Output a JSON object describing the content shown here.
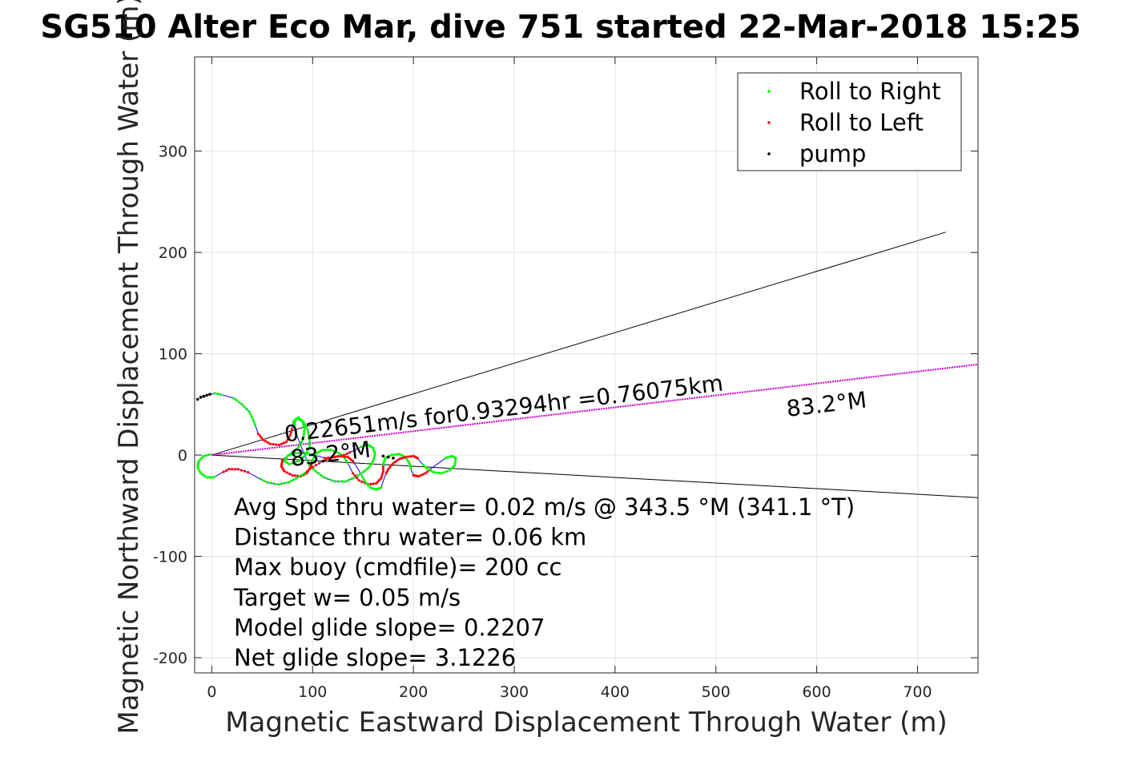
{
  "chart_data": {
    "type": "line",
    "title": "SG510 Alter Eco Mar, dive 751 started 22-Mar-2018 15:25",
    "xlabel": "Magnetic Eastward Displacement Through Water (m)",
    "ylabel": "Magnetic Northward Displacement Through Water (m)",
    "xlim": [
      -17,
      760
    ],
    "ylim": [
      -215,
      393
    ],
    "xticks": [
      0,
      100,
      200,
      300,
      400,
      500,
      600,
      700
    ],
    "yticks": [
      -200,
      -100,
      0,
      100,
      200,
      300
    ],
    "grid": true,
    "legend_position": "top-right",
    "legend": [
      {
        "label": "Roll to Right",
        "color": "#00ff00"
      },
      {
        "label": "Roll to Left",
        "color": "#ff0000"
      },
      {
        "label": "pump",
        "color": "#000000"
      }
    ],
    "colors": {
      "track": "#0000ff",
      "roll_right": "#00ff00",
      "roll_left": "#ff0000",
      "pump": "#000000",
      "mean_heading": "#cc00cc",
      "cone": "#000000"
    },
    "track": [
      [
        -12,
        57
      ],
      [
        -4,
        59
      ],
      [
        3,
        61
      ],
      [
        12,
        59
      ],
      [
        22,
        56
      ],
      [
        30,
        50
      ],
      [
        37,
        43
      ],
      [
        41,
        35
      ],
      [
        44,
        27
      ],
      [
        46,
        21
      ],
      [
        51,
        15
      ],
      [
        58,
        11
      ],
      [
        67,
        10
      ],
      [
        74,
        13
      ],
      [
        78,
        20
      ],
      [
        80,
        28
      ],
      [
        81,
        33
      ],
      [
        85,
        36
      ],
      [
        91,
        33
      ],
      [
        95,
        25
      ],
      [
        97,
        16
      ],
      [
        97,
        8
      ],
      [
        93,
        0
      ],
      [
        86,
        -6
      ],
      [
        77,
        -9
      ],
      [
        72,
        -6
      ],
      [
        75,
        -1
      ],
      [
        83,
        2
      ],
      [
        93,
        2
      ],
      [
        102,
        0
      ],
      [
        112,
        -3
      ],
      [
        122,
        -2
      ],
      [
        131,
        0
      ],
      [
        140,
        4
      ],
      [
        148,
        8
      ],
      [
        155,
        10
      ],
      [
        160,
        7
      ],
      [
        162,
        1
      ],
      [
        160,
        -6
      ],
      [
        156,
        -12
      ],
      [
        150,
        -17
      ],
      [
        142,
        -22
      ],
      [
        133,
        -26
      ],
      [
        122,
        -26
      ],
      [
        111,
        -22
      ],
      [
        103,
        -16
      ],
      [
        97,
        -10
      ],
      [
        93,
        -2
      ],
      [
        90,
        5
      ],
      [
        87,
        13
      ],
      [
        84,
        20
      ],
      [
        82,
        28
      ],
      [
        83,
        35
      ],
      [
        86,
        37
      ],
      [
        90,
        33
      ],
      [
        92,
        26
      ],
      [
        91,
        18
      ],
      [
        88,
        10
      ],
      [
        82,
        4
      ],
      [
        75,
        -1
      ],
      [
        70,
        -5
      ],
      [
        69,
        -11
      ],
      [
        72,
        -16
      ],
      [
        80,
        -20
      ],
      [
        88,
        -21
      ],
      [
        94,
        -18
      ],
      [
        98,
        -12
      ],
      [
        100,
        -5
      ],
      [
        104,
        2
      ],
      [
        110,
        5
      ],
      [
        118,
        5
      ],
      [
        126,
        2
      ],
      [
        132,
        -3
      ],
      [
        136,
        -10
      ],
      [
        140,
        -18
      ],
      [
        146,
        -25
      ],
      [
        155,
        -29
      ],
      [
        163,
        -28
      ],
      [
        168,
        -23
      ],
      [
        170,
        -16
      ],
      [
        170,
        -9
      ],
      [
        172,
        -3
      ],
      [
        178,
        0
      ],
      [
        186,
        1
      ],
      [
        192,
        -2
      ],
      [
        196,
        -8
      ],
      [
        198,
        -15
      ],
      [
        200,
        -20
      ],
      [
        205,
        -21
      ],
      [
        212,
        -18
      ],
      [
        218,
        -13
      ],
      [
        225,
        -8
      ],
      [
        232,
        -3
      ],
      [
        238,
        -1
      ],
      [
        242,
        -3
      ],
      [
        241,
        -10
      ],
      [
        236,
        -15
      ],
      [
        228,
        -18
      ],
      [
        220,
        -17
      ],
      [
        213,
        -13
      ],
      [
        208,
        -8
      ],
      [
        204,
        -3
      ],
      [
        200,
        -1
      ],
      [
        192,
        -2
      ],
      [
        186,
        -4
      ],
      [
        180,
        -8
      ],
      [
        175,
        -14
      ],
      [
        172,
        -20
      ],
      [
        170,
        -26
      ],
      [
        168,
        -32
      ],
      [
        163,
        -34
      ],
      [
        157,
        -32
      ],
      [
        152,
        -26
      ],
      [
        148,
        -19
      ],
      [
        144,
        -12
      ],
      [
        140,
        -6
      ],
      [
        135,
        -2
      ],
      [
        128,
        -1
      ],
      [
        120,
        -2
      ],
      [
        110,
        -6
      ],
      [
        100,
        -12
      ],
      [
        92,
        -18
      ],
      [
        84,
        -23
      ],
      [
        76,
        -27
      ],
      [
        66,
        -29
      ],
      [
        55,
        -27
      ],
      [
        45,
        -22
      ],
      [
        36,
        -17
      ],
      [
        26,
        -14
      ],
      [
        17,
        -14
      ],
      [
        9,
        -18
      ],
      [
        2,
        -22
      ],
      [
        -5,
        -22
      ],
      [
        -11,
        -18
      ],
      [
        -14,
        -12
      ],
      [
        -13,
        -6
      ],
      [
        -8,
        -1
      ],
      [
        0,
        1
      ]
    ],
    "pump_points": [
      [
        -14,
        55
      ],
      [
        -11,
        57
      ],
      [
        -8,
        58
      ],
      [
        -5,
        59
      ],
      [
        -2,
        60
      ],
      [
        170,
        -1
      ],
      [
        175,
        -2
      ],
      [
        180,
        -3
      ]
    ],
    "mean_heading_line": {
      "x": [
        0,
        760
      ],
      "y": [
        0,
        89.5
      ]
    },
    "cone_lines": [
      {
        "x": [
          0,
          728
        ],
        "y": [
          0,
          220
        ]
      },
      {
        "x": [
          0,
          760
        ],
        "y": [
          0,
          -42
        ]
      }
    ],
    "annotations": [
      {
        "text": "0.22651m/s for0.93294hr =0.76075km",
        "x": 73,
        "y": 13,
        "rotation": -6.7
      },
      {
        "text": "83.2°M",
        "x": 571,
        "y": 38,
        "rotation": -6.7
      },
      {
        "text": "83.2°M",
        "x": 79,
        "y": -11,
        "rotation": -6.7
      }
    ],
    "notes": [
      "Avg Spd thru water=  0.02 m/s @ 343.5 °M (341.1 °T)",
      "Distance thru water=  0.06 km",
      "Max buoy (cmdfile)= 200 cc",
      "Target w= 0.05 m/s",
      "Model glide slope= 0.2207",
      "Net glide slope= 3.1226"
    ]
  }
}
